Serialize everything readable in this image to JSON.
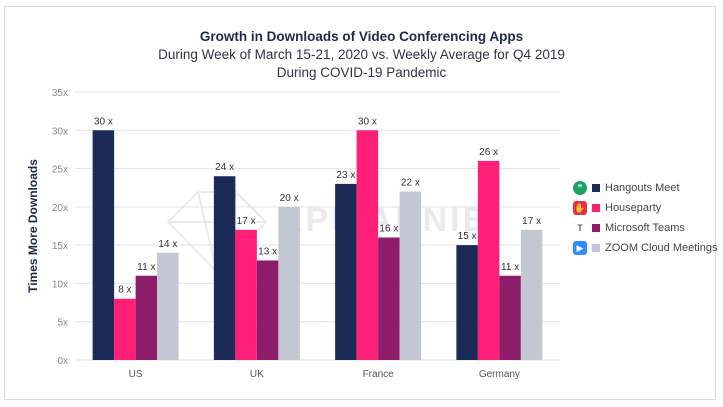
{
  "chart_data": {
    "type": "bar",
    "title": "Growth in Downloads of Video Conferencing Apps",
    "subtitle_lines": [
      "During Week of March 15-21, 2020 vs. Weekly Average for Q4 2019",
      "During COVID-19 Pandemic"
    ],
    "ylabel": "Times More Downloads",
    "xlabel": "",
    "ylim": [
      0,
      35
    ],
    "yticks": [
      "0x",
      "5x",
      "10x",
      "15x",
      "20x",
      "25x",
      "30x",
      "35x"
    ],
    "grid": true,
    "legend_position": "right",
    "categories": [
      "US",
      "UK",
      "France",
      "Germany"
    ],
    "series": [
      {
        "name": "Hangouts Meet",
        "color": "#1b2a57",
        "icon": "hangouts-meet-icon",
        "icon_color": "#1ea362",
        "icon_glyph": "❞",
        "values": [
          30,
          24,
          23,
          15
        ],
        "labels": [
          "30 x",
          "24 x",
          "23 x",
          "15 x"
        ]
      },
      {
        "name": "Houseparty",
        "color": "#ff1f77",
        "icon": "houseparty-icon",
        "icon_color": "#ef2c4f",
        "icon_glyph": "✋",
        "values": [
          8,
          17,
          30,
          26
        ],
        "labels": [
          "8 x",
          "17 x",
          "30 x",
          "26 x"
        ]
      },
      {
        "name": "Microsoft Teams",
        "color": "#8d1c6b",
        "icon": "microsoft-teams-icon",
        "icon_color": "#5558af",
        "icon_glyph": "T",
        "values": [
          11,
          13,
          16,
          11
        ],
        "labels": [
          "11 x",
          "13 x",
          "16 x",
          "11 x"
        ]
      },
      {
        "name": "ZOOM Cloud Meetings",
        "color": "#c3c7d2",
        "icon": "zoom-icon",
        "icon_color": "#2d8cff",
        "icon_glyph": "▶",
        "values": [
          14,
          20,
          22,
          17
        ],
        "labels": [
          "14 x",
          "20 x",
          "22 x",
          "17 x"
        ]
      }
    ],
    "watermark": "APP ANNIE"
  }
}
